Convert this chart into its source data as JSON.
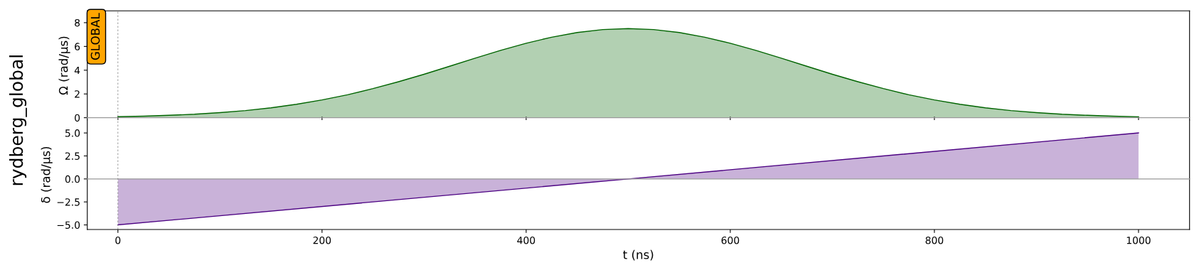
{
  "chart_data": [
    {
      "type": "area",
      "ylabel": "Ω (rad/μs)",
      "annotations": [
        "rydberg_global",
        "GLOBAL"
      ],
      "xlim": [
        -30,
        1050
      ],
      "xticks": [
        0,
        200,
        400,
        600,
        800,
        1000
      ],
      "ylim": [
        -0.2,
        9
      ],
      "yticks": [
        0,
        2,
        4,
        6,
        8
      ],
      "tick_labels": "y",
      "x": [
        0,
        25,
        50,
        75,
        100,
        125,
        150,
        175,
        200,
        225,
        250,
        275,
        300,
        325,
        350,
        375,
        400,
        425,
        450,
        475,
        500,
        525,
        550,
        575,
        600,
        625,
        650,
        675,
        700,
        725,
        750,
        775,
        800,
        825,
        850,
        875,
        900,
        925,
        950,
        975,
        1000
      ],
      "series": [
        {
          "color": "#006400",
          "values": [
            0.08,
            0.13,
            0.2,
            0.29,
            0.43,
            0.6,
            0.83,
            1.13,
            1.5,
            1.93,
            2.45,
            3.03,
            3.66,
            4.33,
            5.01,
            5.67,
            6.27,
            6.78,
            7.17,
            7.42,
            7.5,
            7.42,
            7.17,
            6.78,
            6.27,
            5.67,
            5.01,
            4.33,
            3.66,
            3.03,
            2.45,
            1.93,
            1.5,
            1.13,
            0.83,
            0.6,
            0.43,
            0.29,
            0.2,
            0.13,
            0.08
          ]
        }
      ],
      "ref_lines": [
        {
          "axis": "y",
          "value": 0,
          "color": "#999999",
          "line_style": "solid"
        },
        {
          "axis": "x",
          "value": 0,
          "color": "#888888",
          "line_style": "dashed"
        }
      ]
    },
    {
      "type": "area",
      "ylabel": "δ (rad/μs)",
      "xlabel": "t (ns)",
      "xlim": [
        -30,
        1050
      ],
      "xticks": [
        0,
        200,
        400,
        600,
        800,
        1000
      ],
      "ylim": [
        -5.5,
        6.4
      ],
      "yticks": [
        {
          "value": 5,
          "label": "5.0"
        },
        {
          "value": 2.5,
          "label": "2.5"
        },
        {
          "value": 0,
          "label": "0.0"
        },
        {
          "value": -2.5,
          "label": "−2.5"
        },
        {
          "value": -5,
          "label": "−5.0"
        }
      ],
      "x": [
        0,
        500,
        1000
      ],
      "series": [
        {
          "color": "#4b0082",
          "values": [
            -5,
            0,
            5
          ]
        }
      ],
      "ref_lines": [
        {
          "axis": "y",
          "value": 0,
          "color": "#999999",
          "line_style": "solid"
        },
        {
          "axis": "x",
          "value": 0,
          "color": "#888888",
          "line_style": "dashed"
        }
      ]
    }
  ]
}
